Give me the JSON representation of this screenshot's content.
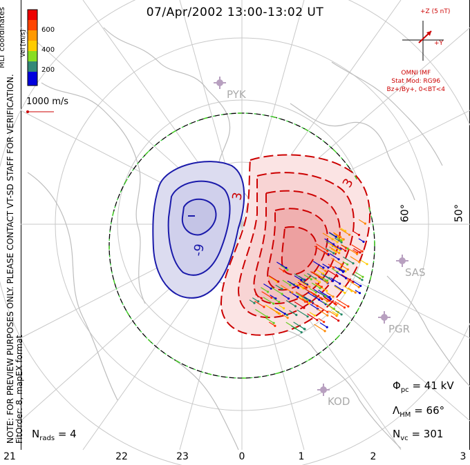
{
  "title": "07/Apr/2002 13:00-13:02 UT",
  "side_note": {
    "line1": "NOTE: FOR PREVIEW PURPOSES ONLY. PLEASE CONTACT VT-SD STAFF FOR VERIFICATION.",
    "line2": "FitOrder: 8, mapEX format",
    "coords": "MLT coordinates"
  },
  "velocity_scale": {
    "label": "Vel [m/s]",
    "ticks": [
      "600",
      "400",
      "200"
    ],
    "colors": [
      "#ff0000",
      "#ff6600",
      "#ffaa00",
      "#aacc00",
      "#00cc00",
      "#008888",
      "#0000cc"
    ],
    "ref_vector": "1000 m/s"
  },
  "imf": {
    "z_label": "+Z (5 nT)",
    "y_label": "+Y",
    "source": "OMNI IMF",
    "model": "Stat Mod: RG96",
    "condition": "Bz+/By+, 0<BT<4"
  },
  "stats": {
    "phi_symbol": "Φ",
    "phi_sub": "pc",
    "phi_value": "= 41 kV",
    "lambda_symbol": "Λ",
    "lambda_sub": "HM",
    "lambda_value": "= 66°",
    "nvc_symbol": "N",
    "nvc_sub": "vc",
    "nvc_value": "= 301",
    "nrads_symbol": "N",
    "nrads_sub": "rads",
    "nrads_value": "= 4"
  },
  "stations": [
    "PYK",
    "SAS",
    "PGR",
    "KOD"
  ],
  "latitude_labels": [
    "60°",
    "50°"
  ],
  "contour_labels": {
    "negative_low": "-9",
    "negative_center": "-",
    "positive_high": "3",
    "positive_edge": "3"
  },
  "mlt_ticks": [
    "21",
    "22",
    "23",
    "0",
    "1",
    "2",
    "3"
  ],
  "colors": {
    "positive": "#cc0000",
    "negative": "#0000aa",
    "grid": "#bbbbbb",
    "land": "#bbbbbb"
  }
}
